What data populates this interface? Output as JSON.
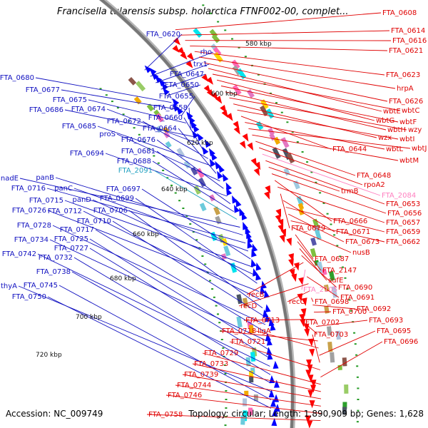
{
  "header": {
    "title": "Francisella tularensis subsp. holarctica FTNF002-00, complet..."
  },
  "footer": {
    "accession": "Accession: NC_009749",
    "summary": "Topology: circular; Length: 1,890,909 bp; Genes: 1,628"
  },
  "colors": {
    "reverse_strand": "#0000ff",
    "forward_strand": "#ff0000",
    "label_blue": "#1010c0",
    "label_red": "#e00000",
    "label_pink": "#ff80c0",
    "label_cyan": "#20a0c0",
    "backbone": "#777777",
    "tick_dot": "#229922"
  },
  "map": {
    "scale_labels": [
      "580 kbp",
      "600 kbp",
      "620 kbp",
      "640 kbp",
      "660 kbp",
      "680 kbp",
      "700 kbp",
      "720 kbp"
    ],
    "left_labels": [
      {
        "text": "FTA_0620",
        "color": "blue"
      },
      {
        "text": "rho",
        "color": "blue"
      },
      {
        "text": "trx1",
        "color": "blue"
      },
      {
        "text": "FTA_0647",
        "color": "blue"
      },
      {
        "text": "FTA_0650",
        "color": "blue"
      },
      {
        "text": "FTA_0680",
        "color": "blue"
      },
      {
        "text": "FTA_0677",
        "color": "blue"
      },
      {
        "text": "FTA_0655",
        "color": "blue"
      },
      {
        "text": "FTA_0675",
        "color": "blue"
      },
      {
        "text": "FTA_0658",
        "color": "blue"
      },
      {
        "text": "FTA_0686",
        "color": "blue"
      },
      {
        "text": "FTA_0674",
        "color": "blue"
      },
      {
        "text": "FTA_0660",
        "color": "blue"
      },
      {
        "text": "FTA_0672",
        "color": "blue"
      },
      {
        "text": "FTA_0685",
        "color": "blue"
      },
      {
        "text": "FTA_0664",
        "color": "blue"
      },
      {
        "text": "proS",
        "color": "blue"
      },
      {
        "text": "FTA_0676",
        "color": "blue"
      },
      {
        "text": "FTA_0694",
        "color": "blue"
      },
      {
        "text": "FTA_0681",
        "color": "blue"
      },
      {
        "text": "FTA_0688",
        "color": "blue"
      },
      {
        "text": "FTA_2091",
        "color": "cyan"
      },
      {
        "text": "nadE",
        "color": "blue"
      },
      {
        "text": "panB",
        "color": "blue"
      },
      {
        "text": "FTA_0716",
        "color": "blue"
      },
      {
        "text": "panC",
        "color": "blue"
      },
      {
        "text": "FTA_0697",
        "color": "blue"
      },
      {
        "text": "FTA_0715",
        "color": "blue"
      },
      {
        "text": "panD",
        "color": "blue"
      },
      {
        "text": "FTA_0699",
        "color": "blue"
      },
      {
        "text": "FTA_0726",
        "color": "blue"
      },
      {
        "text": "FTA_0712",
        "color": "blue"
      },
      {
        "text": "FTA_0706",
        "color": "blue"
      },
      {
        "text": "FTA_0710",
        "color": "blue"
      },
      {
        "text": "FTA_0728",
        "color": "blue"
      },
      {
        "text": "FTA_0717",
        "color": "blue"
      },
      {
        "text": "FTA_0734",
        "color": "blue"
      },
      {
        "text": "FTA_0725",
        "color": "blue"
      },
      {
        "text": "FTA_0727",
        "color": "blue"
      },
      {
        "text": "FTA_0742",
        "color": "blue"
      },
      {
        "text": "FTA_0732",
        "color": "blue"
      },
      {
        "text": "FTA_0738",
        "color": "blue"
      },
      {
        "text": "thyA",
        "color": "blue"
      },
      {
        "text": "FTA_0745",
        "color": "blue"
      },
      {
        "text": "FTA_0750",
        "color": "blue"
      }
    ],
    "right_labels": [
      {
        "text": "FTA_0608",
        "color": "red"
      },
      {
        "text": "FTA_0614",
        "color": "red"
      },
      {
        "text": "FTA_0616",
        "color": "red"
      },
      {
        "text": "FTA_0621",
        "color": "red"
      },
      {
        "text": "FTA_0623",
        "color": "red"
      },
      {
        "text": "hrpA",
        "color": "red"
      },
      {
        "text": "FTA_0626",
        "color": "red"
      },
      {
        "text": "wbtE",
        "color": "red"
      },
      {
        "text": "wbtC",
        "color": "red"
      },
      {
        "text": "wbtG",
        "color": "red"
      },
      {
        "text": "wbtF",
        "color": "red"
      },
      {
        "text": "wbtH",
        "color": "red"
      },
      {
        "text": "wzy",
        "color": "red"
      },
      {
        "text": "wzx",
        "color": "red"
      },
      {
        "text": "wbtI",
        "color": "red"
      },
      {
        "text": "FTA_0644",
        "color": "red"
      },
      {
        "text": "wbtL",
        "color": "red"
      },
      {
        "text": "wbtJ",
        "color": "red"
      },
      {
        "text": "wbtM",
        "color": "red"
      },
      {
        "text": "FTA_0648",
        "color": "red"
      },
      {
        "text": "rpoA2",
        "color": "red"
      },
      {
        "text": "FTA_2084",
        "color": "pink"
      },
      {
        "text": "FTA_0653",
        "color": "red"
      },
      {
        "text": "trmB",
        "color": "red"
      },
      {
        "text": "FTA_0656",
        "color": "red"
      },
      {
        "text": "FTA_0666",
        "color": "red"
      },
      {
        "text": "FTA_0657",
        "color": "red"
      },
      {
        "text": "FTA_0679",
        "color": "red"
      },
      {
        "text": "FTA_0671",
        "color": "red"
      },
      {
        "text": "FTA_0659",
        "color": "red"
      },
      {
        "text": "FTA_0673",
        "color": "red"
      },
      {
        "text": "FTA_0662",
        "color": "red"
      },
      {
        "text": "nusB",
        "color": "red"
      },
      {
        "text": "FTA_0687",
        "color": "red"
      },
      {
        "text": "FTA_2147",
        "color": "red"
      },
      {
        "text": "sufE",
        "color": "red"
      },
      {
        "text": "FTA_0690",
        "color": "red"
      },
      {
        "text": "recB",
        "color": "red"
      },
      {
        "text": "FTA_2105",
        "color": "pink"
      },
      {
        "text": "FTA_0691",
        "color": "red"
      },
      {
        "text": "recD",
        "color": "red"
      },
      {
        "text": "recC",
        "color": "red"
      },
      {
        "text": "FTA_0698",
        "color": "red"
      },
      {
        "text": "FTA_0692",
        "color": "red"
      },
      {
        "text": "FTA_0700",
        "color": "red"
      },
      {
        "text": "FTA_0713",
        "color": "red"
      },
      {
        "text": "FTA_0693",
        "color": "red"
      },
      {
        "text": "FTA_0702",
        "color": "red"
      },
      {
        "text": "FTA_0718",
        "color": "red"
      },
      {
        "text": "ligA",
        "color": "red"
      },
      {
        "text": "FTA_0695",
        "color": "red"
      },
      {
        "text": "FTA_0703",
        "color": "red"
      },
      {
        "text": "FTA_0721",
        "color": "red"
      },
      {
        "text": "FTA_0696",
        "color": "red"
      },
      {
        "text": "FTA_0729",
        "color": "red"
      },
      {
        "text": "FTA_0733",
        "color": "red"
      },
      {
        "text": "FTA_0739",
        "color": "red"
      },
      {
        "text": "FTA_0744",
        "color": "red"
      },
      {
        "text": "FTA_0746",
        "color": "red"
      },
      {
        "text": "FTA_0758",
        "color": "red"
      }
    ]
  }
}
